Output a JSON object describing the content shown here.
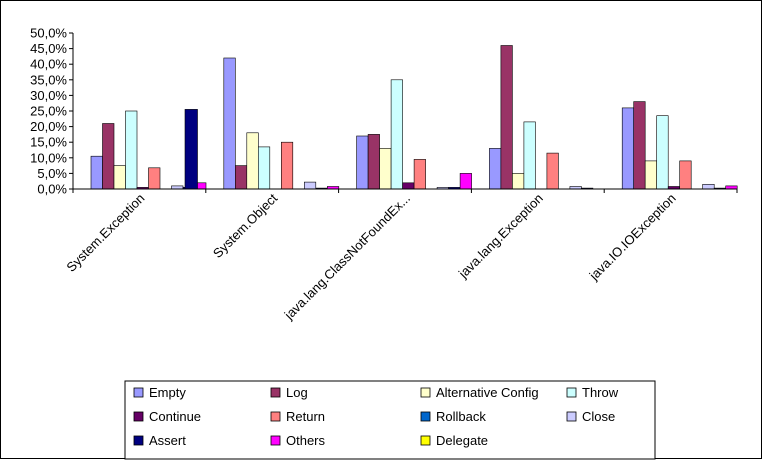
{
  "chart_data": {
    "type": "bar",
    "categories": [
      "System.Exception",
      "System.Object",
      "java.lang.ClassNotFoundEx...",
      "java.lang.Exception",
      "java.IO.IOException"
    ],
    "yticks": [
      "0,0%",
      "5,0%",
      "10,0%",
      "15,0%",
      "20,0%",
      "25,0%",
      "30,0%",
      "35,0%",
      "40,0%",
      "45,0%",
      "50,0%"
    ],
    "ylim": [
      0,
      50
    ],
    "unit": "%",
    "grid": false,
    "legend_position": "bottom",
    "series": [
      {
        "name": "Empty",
        "color": "#9999ff",
        "values": [
          10.5,
          42.0,
          17.0,
          13.0,
          26.0
        ]
      },
      {
        "name": "Log",
        "color": "#993366",
        "values": [
          21.0,
          7.5,
          17.5,
          46.0,
          28.0
        ]
      },
      {
        "name": "Alternative Config",
        "color": "#ffffcc",
        "values": [
          7.5,
          18.0,
          13.0,
          5.0,
          9.0
        ]
      },
      {
        "name": "Throw",
        "color": "#ccffff",
        "values": [
          25.0,
          13.5,
          35.0,
          21.5,
          23.5
        ]
      },
      {
        "name": "Continue",
        "color": "#660066",
        "values": [
          0.5,
          0.0,
          2.0,
          0.0,
          0.8
        ]
      },
      {
        "name": "Return",
        "color": "#ff8080",
        "values": [
          6.8,
          15.0,
          9.5,
          11.5,
          9.0
        ]
      },
      {
        "name": "Rollback",
        "color": "#0066cc",
        "values": [
          0.0,
          0.0,
          0.0,
          0.0,
          0.0
        ]
      },
      {
        "name": "Close",
        "color": "#ccccff",
        "values": [
          1.0,
          2.2,
          0.5,
          0.8,
          1.5
        ]
      },
      {
        "name": "Assert",
        "color": "#000080",
        "values": [
          0.5,
          0.3,
          0.5,
          0.3,
          0.3
        ]
      },
      {
        "name": "Others",
        "color": "#ff00ff",
        "values": [
          2.0,
          0.8,
          5.0,
          0.0,
          1.0
        ]
      },
      {
        "name": "Delegate",
        "color": "#ffff00",
        "values": [
          0.0,
          0.0,
          0.0,
          0.0,
          0.0
        ]
      }
    ],
    "extra_bars": [
      {
        "category_index": 0,
        "series": "Assert",
        "value": 25.5
      }
    ]
  }
}
